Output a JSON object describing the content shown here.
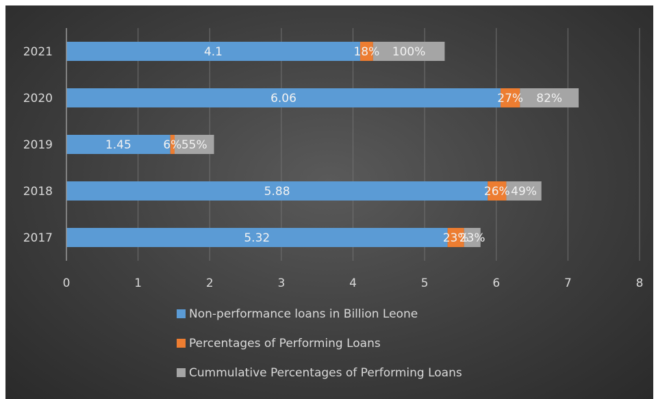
{
  "chart_data": {
    "type": "bar",
    "orientation": "horizontal",
    "stacked": true,
    "categories": [
      "2017",
      "2018",
      "2019",
      "2020",
      "2021"
    ],
    "series": [
      {
        "name": "Non-performance loans in Billion Leone",
        "values": [
          5.32,
          5.88,
          1.45,
          6.06,
          4.1
        ],
        "labels": [
          "5.32",
          "5.88",
          "1.45",
          "6.06",
          "4.1"
        ],
        "color": "#5b9bd5"
      },
      {
        "name": "Percentages of Performing Loans",
        "values": [
          0.23,
          0.26,
          0.06,
          0.27,
          0.18
        ],
        "labels": [
          "23%",
          "26%",
          "6%",
          "27%",
          "18%"
        ],
        "color": "#ed7d31"
      },
      {
        "name": "Cummulative Percentages of Performing Loans",
        "values": [
          0.23,
          0.49,
          0.55,
          0.82,
          1.0
        ],
        "labels": [
          "23%",
          "49%",
          "55%",
          "82%",
          "100%"
        ],
        "color": "#a5a5a5"
      }
    ],
    "xlim": [
      0,
      8
    ],
    "xticks": [
      "0",
      "1",
      "2",
      "3",
      "4",
      "5",
      "6",
      "7",
      "8"
    ],
    "grid": true,
    "legend_position": "bottom",
    "title": "",
    "xlabel": "",
    "ylabel": ""
  }
}
